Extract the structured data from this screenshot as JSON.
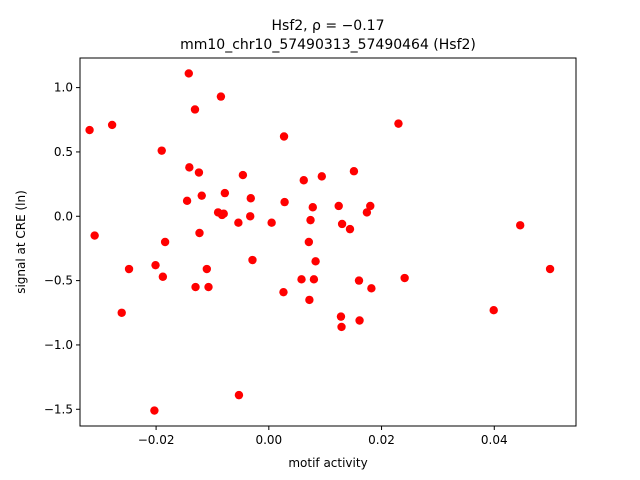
{
  "chart_data": {
    "type": "scatter",
    "title": "Hsf2, ρ = −0.17",
    "subtitle": "mm10_chr10_57490313_57490464 (Hsf2)",
    "xlabel": "motif activity",
    "ylabel": "signal at CRE (ln)",
    "xlim": [
      -0.0335,
      0.0545
    ],
    "ylim": [
      -1.63,
      1.23
    ],
    "xticks": [
      -0.02,
      0.0,
      0.02,
      0.04
    ],
    "xtick_labels": [
      "−0.02",
      "0.00",
      "0.02",
      "0.04"
    ],
    "yticks": [
      -1.5,
      -1.0,
      -0.5,
      0.0,
      0.5,
      1.0
    ],
    "ytick_labels": [
      "−1.5",
      "−1.0",
      "−0.5",
      "0.0",
      "0.5",
      "1.0"
    ],
    "grid": false,
    "marker_color": "#ff0000",
    "points": [
      {
        "x": -0.0318,
        "y": 0.67
      },
      {
        "x": -0.0309,
        "y": -0.15
      },
      {
        "x": -0.0278,
        "y": 0.71
      },
      {
        "x": -0.0261,
        "y": -0.75
      },
      {
        "x": -0.0248,
        "y": -0.41
      },
      {
        "x": -0.0203,
        "y": -1.51
      },
      {
        "x": -0.0201,
        "y": -0.38
      },
      {
        "x": -0.019,
        "y": 0.51
      },
      {
        "x": -0.0188,
        "y": -0.47
      },
      {
        "x": -0.0184,
        "y": -0.2
      },
      {
        "x": -0.0145,
        "y": 0.12
      },
      {
        "x": -0.0142,
        "y": 1.11
      },
      {
        "x": -0.0141,
        "y": 0.38
      },
      {
        "x": -0.0131,
        "y": 0.83
      },
      {
        "x": -0.013,
        "y": -0.55
      },
      {
        "x": -0.0124,
        "y": 0.34
      },
      {
        "x": -0.0123,
        "y": -0.13
      },
      {
        "x": -0.0119,
        "y": 0.16
      },
      {
        "x": -0.011,
        "y": -0.41
      },
      {
        "x": -0.0107,
        "y": -0.55
      },
      {
        "x": -0.009,
        "y": 0.03
      },
      {
        "x": -0.0085,
        "y": 0.93
      },
      {
        "x": -0.0083,
        "y": 0.01
      },
      {
        "x": -0.008,
        "y": 0.02
      },
      {
        "x": -0.0078,
        "y": 0.18
      },
      {
        "x": -0.0054,
        "y": -0.05
      },
      {
        "x": -0.0053,
        "y": -1.39
      },
      {
        "x": -0.0046,
        "y": 0.32
      },
      {
        "x": -0.0033,
        "y": 0.0
      },
      {
        "x": -0.0032,
        "y": 0.14
      },
      {
        "x": -0.0029,
        "y": -0.34
      },
      {
        "x": 0.0005,
        "y": -0.05
      },
      {
        "x": 0.0026,
        "y": -0.59
      },
      {
        "x": 0.0027,
        "y": 0.62
      },
      {
        "x": 0.0028,
        "y": 0.11
      },
      {
        "x": 0.0058,
        "y": -0.49
      },
      {
        "x": 0.0062,
        "y": 0.28
      },
      {
        "x": 0.0071,
        "y": -0.2
      },
      {
        "x": 0.0072,
        "y": -0.65
      },
      {
        "x": 0.0074,
        "y": -0.03
      },
      {
        "x": 0.0078,
        "y": 0.07
      },
      {
        "x": 0.008,
        "y": -0.49
      },
      {
        "x": 0.0083,
        "y": -0.35
      },
      {
        "x": 0.0094,
        "y": 0.31
      },
      {
        "x": 0.0124,
        "y": 0.08
      },
      {
        "x": 0.0128,
        "y": -0.78
      },
      {
        "x": 0.0129,
        "y": -0.86
      },
      {
        "x": 0.013,
        "y": -0.06
      },
      {
        "x": 0.0144,
        "y": -0.1
      },
      {
        "x": 0.0151,
        "y": 0.35
      },
      {
        "x": 0.016,
        "y": -0.5
      },
      {
        "x": 0.0161,
        "y": -0.81
      },
      {
        "x": 0.0174,
        "y": 0.03
      },
      {
        "x": 0.018,
        "y": 0.08
      },
      {
        "x": 0.0182,
        "y": -0.56
      },
      {
        "x": 0.023,
        "y": 0.72
      },
      {
        "x": 0.0241,
        "y": -0.48
      },
      {
        "x": 0.0399,
        "y": -0.73
      },
      {
        "x": 0.0446,
        "y": -0.07
      },
      {
        "x": 0.0499,
        "y": -0.41
      }
    ]
  }
}
